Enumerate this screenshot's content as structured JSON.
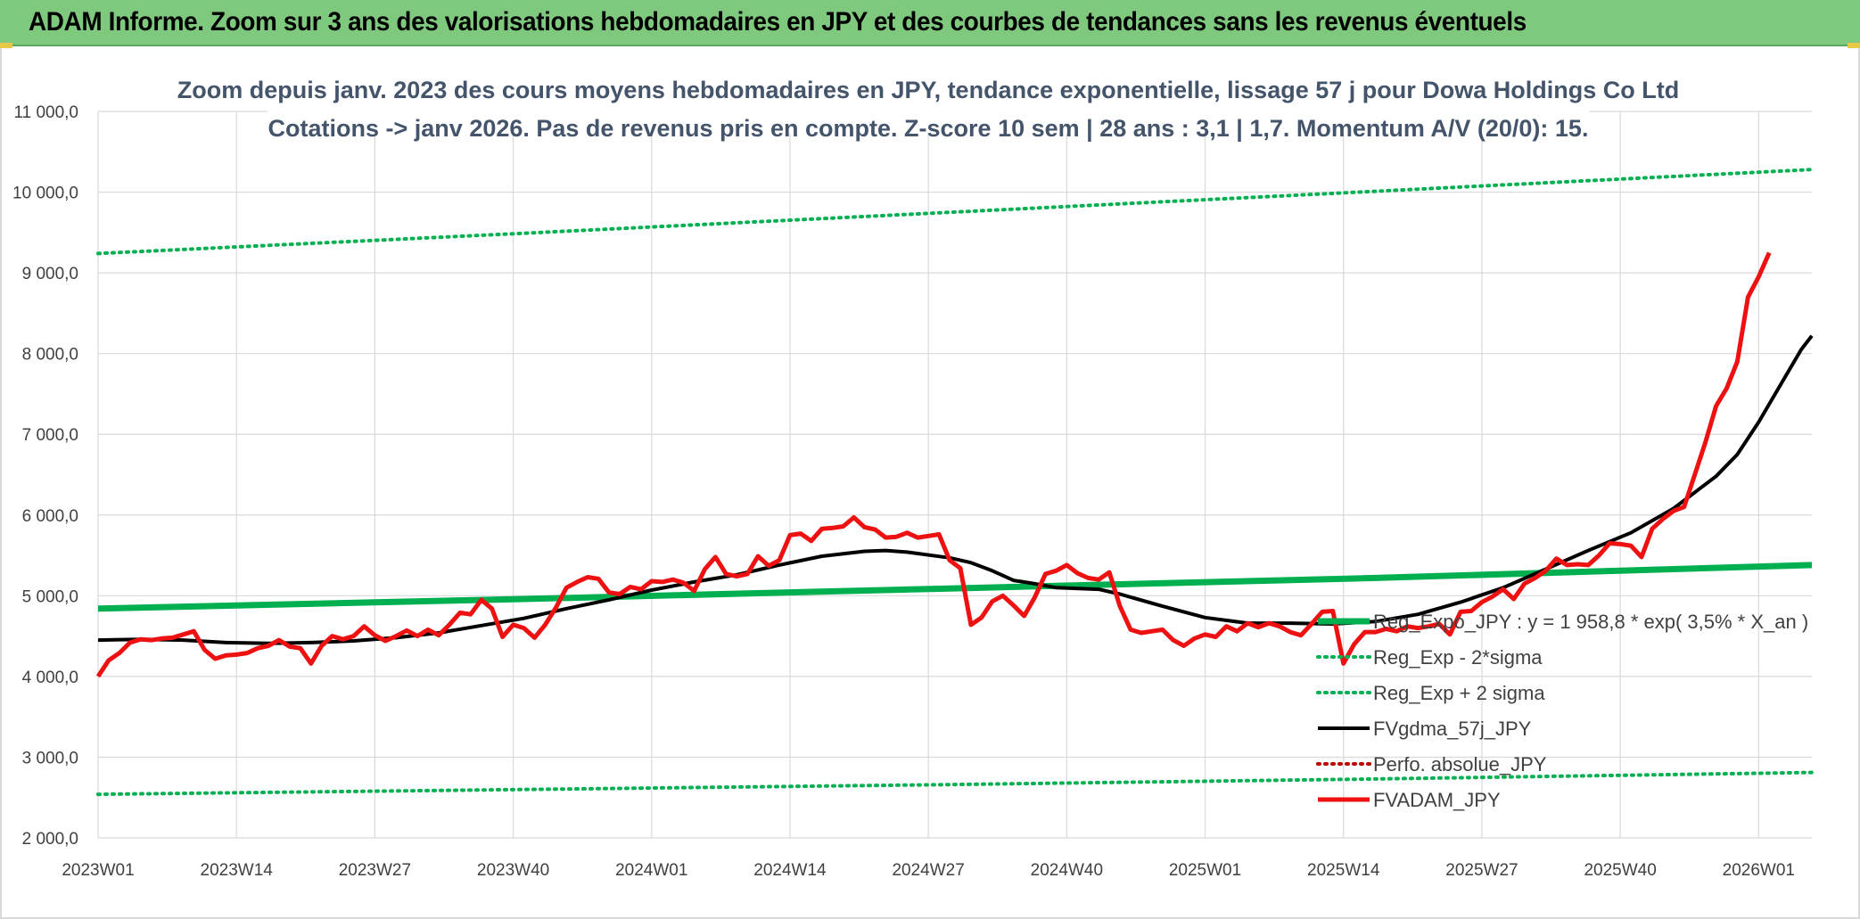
{
  "banner": {
    "title": "ADAM Informe. Zoom sur 3 ans des valorisations hebdomadaires en JPY et des courbes de tendances sans les revenus éventuels"
  },
  "colors": {
    "banner_bg": "#7ec97e",
    "reg_expo": "#00b050",
    "band": "#00b050",
    "gdma": "#000000",
    "perfo": "#c00000",
    "adam": "#ee1111",
    "title": "#44546a",
    "grid": "#d9d9d9"
  },
  "chart_data": {
    "type": "line",
    "title": "Zoom depuis janv. 2023 des cours moyens hebdomadaires en JPY, tendance exponentielle, lissage 57 j pour Dowa Holdings Co Ltd",
    "subtitle": "Cotations -> janv 2026. Pas de revenus pris en compte. Z-score 10 sem | 28 ans : 3,1 | 1,7. Momentum A/V (20/0): 15.",
    "xlabel": "",
    "ylabel": "",
    "ylim": [
      2000,
      11000
    ],
    "yticks": [
      "2 000,0",
      "3 000,0",
      "4 000,0",
      "5 000,0",
      "6 000,0",
      "7 000,0",
      "8 000,0",
      "9 000,0",
      "10 000,0",
      "11 000,0"
    ],
    "x_range_weeks": [
      0,
      160
    ],
    "x_ticks": [
      {
        "label": "2023W01",
        "week": 0
      },
      {
        "label": "2023W14",
        "week": 13
      },
      {
        "label": "2023W27",
        "week": 26
      },
      {
        "label": "2023W40",
        "week": 39
      },
      {
        "label": "2024W01",
        "week": 52
      },
      {
        "label": "2024W14",
        "week": 65
      },
      {
        "label": "2024W27",
        "week": 78
      },
      {
        "label": "2024W40",
        "week": 91
      },
      {
        "label": "2025W01",
        "week": 104
      },
      {
        "label": "2025W14",
        "week": 117
      },
      {
        "label": "2025W27",
        "week": 130
      },
      {
        "label": "2025W40",
        "week": 143
      },
      {
        "label": "2026W01",
        "week": 156
      }
    ],
    "grid": true,
    "legend_position": "bottom-right",
    "series": [
      {
        "name": "Reg_Expo_JPY : y = 1 958,8 * exp( 3,5% * X_an )",
        "style": "thick-solid",
        "color": "#00b050",
        "points": [
          [
            0,
            4840
          ],
          [
            40,
            4960
          ],
          [
            80,
            5090
          ],
          [
            120,
            5220
          ],
          [
            161,
            5380
          ]
        ]
      },
      {
        "name": "Reg_Exp - 2*sigma",
        "style": "dotted",
        "color": "#00b050",
        "points": [
          [
            0,
            2540
          ],
          [
            40,
            2600
          ],
          [
            80,
            2660
          ],
          [
            120,
            2730
          ],
          [
            161,
            2810
          ]
        ]
      },
      {
        "name": "Reg_Exp + 2 sigma",
        "style": "dotted",
        "color": "#00b050",
        "points": [
          [
            0,
            9240
          ],
          [
            40,
            9490
          ],
          [
            80,
            9750
          ],
          [
            120,
            10010
          ],
          [
            161,
            10280
          ]
        ]
      },
      {
        "name": "FVgdma_57j_JPY",
        "style": "solid",
        "color": "#000000",
        "points": [
          [
            0,
            4450
          ],
          [
            4,
            4460
          ],
          [
            8,
            4450
          ],
          [
            12,
            4420
          ],
          [
            16,
            4410
          ],
          [
            20,
            4420
          ],
          [
            24,
            4440
          ],
          [
            28,
            4480
          ],
          [
            32,
            4540
          ],
          [
            36,
            4630
          ],
          [
            40,
            4720
          ],
          [
            44,
            4840
          ],
          [
            48,
            4950
          ],
          [
            52,
            5070
          ],
          [
            56,
            5170
          ],
          [
            60,
            5260
          ],
          [
            64,
            5380
          ],
          [
            68,
            5490
          ],
          [
            72,
            5550
          ],
          [
            74,
            5560
          ],
          [
            76,
            5540
          ],
          [
            80,
            5470
          ],
          [
            82,
            5410
          ],
          [
            84,
            5310
          ],
          [
            86,
            5190
          ],
          [
            88,
            5150
          ],
          [
            90,
            5100
          ],
          [
            94,
            5080
          ],
          [
            96,
            5020
          ],
          [
            100,
            4870
          ],
          [
            104,
            4730
          ],
          [
            108,
            4660
          ],
          [
            112,
            4660
          ],
          [
            116,
            4650
          ],
          [
            120,
            4680
          ],
          [
            124,
            4770
          ],
          [
            128,
            4920
          ],
          [
            132,
            5100
          ],
          [
            136,
            5330
          ],
          [
            140,
            5560
          ],
          [
            144,
            5780
          ],
          [
            148,
            6080
          ],
          [
            152,
            6480
          ],
          [
            154,
            6750
          ],
          [
            156,
            7150
          ],
          [
            158,
            7600
          ],
          [
            160,
            8050
          ],
          [
            161,
            8220
          ]
        ]
      },
      {
        "name": "Perfo. absolue_JPY",
        "style": "dotted",
        "color": "#c00000",
        "points": []
      },
      {
        "name": "FVADAM_JPY",
        "style": "thick-solid",
        "color": "#ee1111",
        "points": [
          [
            0,
            4000
          ],
          [
            1,
            4200
          ],
          [
            2,
            4290
          ],
          [
            3,
            4420
          ],
          [
            4,
            4460
          ],
          [
            5,
            4450
          ],
          [
            6,
            4470
          ],
          [
            7,
            4480
          ],
          [
            8,
            4520
          ],
          [
            9,
            4560
          ],
          [
            10,
            4330
          ],
          [
            11,
            4220
          ],
          [
            12,
            4260
          ],
          [
            13,
            4270
          ],
          [
            14,
            4290
          ],
          [
            15,
            4350
          ],
          [
            16,
            4380
          ],
          [
            17,
            4450
          ],
          [
            18,
            4370
          ],
          [
            19,
            4350
          ],
          [
            20,
            4160
          ],
          [
            21,
            4380
          ],
          [
            22,
            4500
          ],
          [
            23,
            4460
          ],
          [
            24,
            4500
          ],
          [
            25,
            4620
          ],
          [
            26,
            4510
          ],
          [
            27,
            4440
          ],
          [
            28,
            4500
          ],
          [
            29,
            4570
          ],
          [
            30,
            4500
          ],
          [
            31,
            4580
          ],
          [
            32,
            4510
          ],
          [
            33,
            4640
          ],
          [
            34,
            4790
          ],
          [
            35,
            4770
          ],
          [
            36,
            4950
          ],
          [
            37,
            4840
          ],
          [
            38,
            4490
          ],
          [
            39,
            4640
          ],
          [
            40,
            4600
          ],
          [
            41,
            4480
          ],
          [
            42,
            4640
          ],
          [
            43,
            4850
          ],
          [
            44,
            5100
          ],
          [
            45,
            5170
          ],
          [
            46,
            5230
          ],
          [
            47,
            5210
          ],
          [
            48,
            5040
          ],
          [
            49,
            5020
          ],
          [
            50,
            5110
          ],
          [
            51,
            5080
          ],
          [
            52,
            5180
          ],
          [
            53,
            5170
          ],
          [
            54,
            5200
          ],
          [
            55,
            5160
          ],
          [
            56,
            5060
          ],
          [
            57,
            5330
          ],
          [
            58,
            5480
          ],
          [
            59,
            5270
          ],
          [
            60,
            5240
          ],
          [
            61,
            5270
          ],
          [
            62,
            5490
          ],
          [
            63,
            5370
          ],
          [
            64,
            5440
          ],
          [
            65,
            5750
          ],
          [
            66,
            5770
          ],
          [
            67,
            5680
          ],
          [
            68,
            5830
          ],
          [
            69,
            5840
          ],
          [
            70,
            5860
          ],
          [
            71,
            5970
          ],
          [
            72,
            5850
          ],
          [
            73,
            5820
          ],
          [
            74,
            5720
          ],
          [
            75,
            5730
          ],
          [
            76,
            5780
          ],
          [
            77,
            5720
          ],
          [
            78,
            5740
          ],
          [
            79,
            5760
          ],
          [
            80,
            5440
          ],
          [
            81,
            5340
          ],
          [
            82,
            4640
          ],
          [
            83,
            4730
          ],
          [
            84,
            4930
          ],
          [
            85,
            5000
          ],
          [
            86,
            4880
          ],
          [
            87,
            4750
          ],
          [
            88,
            4980
          ],
          [
            89,
            5270
          ],
          [
            90,
            5310
          ],
          [
            91,
            5380
          ],
          [
            92,
            5280
          ],
          [
            93,
            5220
          ],
          [
            94,
            5200
          ],
          [
            95,
            5290
          ],
          [
            96,
            4870
          ],
          [
            97,
            4580
          ],
          [
            98,
            4540
          ],
          [
            99,
            4560
          ],
          [
            100,
            4580
          ],
          [
            101,
            4450
          ],
          [
            102,
            4380
          ],
          [
            103,
            4470
          ],
          [
            104,
            4520
          ],
          [
            105,
            4490
          ],
          [
            106,
            4620
          ],
          [
            107,
            4560
          ],
          [
            108,
            4660
          ],
          [
            109,
            4610
          ],
          [
            110,
            4660
          ],
          [
            111,
            4620
          ],
          [
            112,
            4550
          ],
          [
            113,
            4510
          ],
          [
            114,
            4650
          ],
          [
            115,
            4800
          ],
          [
            116,
            4810
          ],
          [
            117,
            4160
          ],
          [
            118,
            4400
          ],
          [
            119,
            4550
          ],
          [
            120,
            4550
          ],
          [
            121,
            4590
          ],
          [
            122,
            4560
          ],
          [
            123,
            4620
          ],
          [
            124,
            4600
          ],
          [
            125,
            4620
          ],
          [
            126,
            4650
          ],
          [
            127,
            4520
          ],
          [
            128,
            4800
          ],
          [
            129,
            4810
          ],
          [
            130,
            4920
          ],
          [
            131,
            4990
          ],
          [
            132,
            5080
          ],
          [
            133,
            4960
          ],
          [
            134,
            5150
          ],
          [
            135,
            5220
          ],
          [
            136,
            5310
          ],
          [
            137,
            5460
          ],
          [
            138,
            5380
          ],
          [
            139,
            5390
          ],
          [
            140,
            5380
          ],
          [
            141,
            5500
          ],
          [
            142,
            5650
          ],
          [
            143,
            5640
          ],
          [
            144,
            5620
          ],
          [
            145,
            5480
          ],
          [
            146,
            5830
          ],
          [
            147,
            5950
          ],
          [
            148,
            6050
          ],
          [
            149,
            6100
          ],
          [
            150,
            6500
          ],
          [
            151,
            6900
          ],
          [
            152,
            7350
          ],
          [
            153,
            7570
          ],
          [
            154,
            7900
          ],
          [
            155,
            8700
          ],
          [
            156,
            8950
          ],
          [
            157,
            9250
          ]
        ]
      }
    ]
  }
}
